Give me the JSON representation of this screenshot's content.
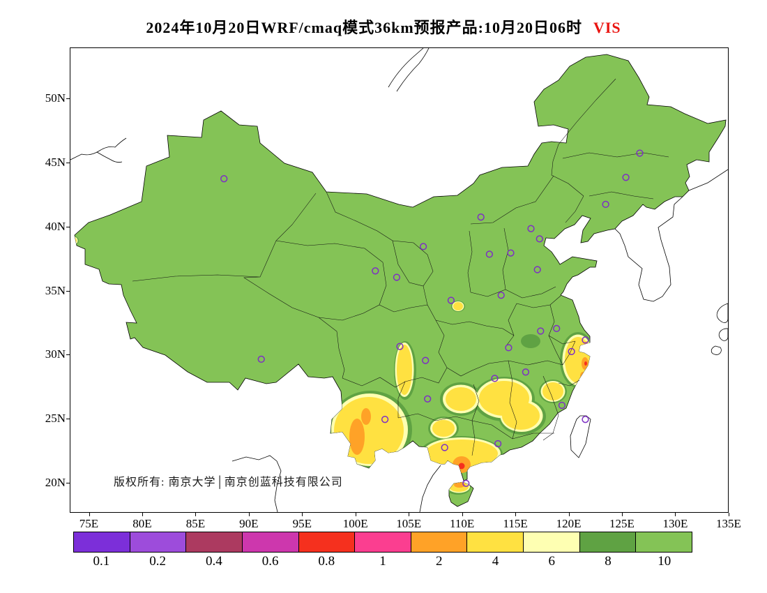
{
  "title": {
    "text": "2024年10月20日WRF/cmaq模式36km预报产品:10月20日06时",
    "highlight": "VIS",
    "highlight_color": "#EA1410"
  },
  "map": {
    "copyright": "版权所有: 南京大学│南京创蓝科技有限公司",
    "land_color": "#84C356",
    "marker_color": "#7D2FC4",
    "markers": [
      {
        "lon": 87.6,
        "lat": 43.8
      },
      {
        "lon": 126.6,
        "lat": 45.8
      },
      {
        "lon": 125.3,
        "lat": 43.9
      },
      {
        "lon": 123.4,
        "lat": 41.8
      },
      {
        "lon": 111.7,
        "lat": 40.8
      },
      {
        "lon": 116.4,
        "lat": 39.9
      },
      {
        "lon": 117.2,
        "lat": 39.1
      },
      {
        "lon": 114.5,
        "lat": 38.0
      },
      {
        "lon": 106.3,
        "lat": 38.5
      },
      {
        "lon": 112.5,
        "lat": 37.9
      },
      {
        "lon": 117.0,
        "lat": 36.7
      },
      {
        "lon": 101.8,
        "lat": 36.6
      },
      {
        "lon": 103.8,
        "lat": 36.1
      },
      {
        "lon": 113.6,
        "lat": 34.7
      },
      {
        "lon": 108.9,
        "lat": 34.3
      },
      {
        "lon": 118.8,
        "lat": 32.1
      },
      {
        "lon": 117.3,
        "lat": 31.9
      },
      {
        "lon": 121.5,
        "lat": 31.2
      },
      {
        "lon": 120.2,
        "lat": 30.3
      },
      {
        "lon": 104.1,
        "lat": 30.7
      },
      {
        "lon": 106.5,
        "lat": 29.6
      },
      {
        "lon": 91.1,
        "lat": 29.7
      },
      {
        "lon": 114.3,
        "lat": 30.6
      },
      {
        "lon": 115.9,
        "lat": 28.7
      },
      {
        "lon": 113.0,
        "lat": 28.2
      },
      {
        "lon": 106.7,
        "lat": 26.6
      },
      {
        "lon": 102.7,
        "lat": 25.0
      },
      {
        "lon": 119.3,
        "lat": 26.1
      },
      {
        "lon": 121.5,
        "lat": 25.0
      },
      {
        "lon": 113.3,
        "lat": 23.1
      },
      {
        "lon": 108.3,
        "lat": 22.8
      },
      {
        "lon": 110.3,
        "lat": 20.0
      }
    ]
  },
  "axes": {
    "lat_labels": [
      "50N",
      "45N",
      "40N",
      "35N",
      "30N",
      "25N",
      "20N"
    ],
    "lon_labels": [
      "75E",
      "80E",
      "85E",
      "90E",
      "95E",
      "100E",
      "105E",
      "110E",
      "115E",
      "120E",
      "125E",
      "130E",
      "135E"
    ]
  },
  "colorbar": {
    "labels": [
      "0.1",
      "0.2",
      "0.4",
      "0.6",
      "0.8",
      "1",
      "2",
      "4",
      "6",
      "8",
      "10"
    ],
    "colors": [
      "#7C2FD9",
      "#9D4CDB",
      "#AC3A60",
      "#CD37AD",
      "#F5301E",
      "#FB3E90",
      "#FFA227",
      "#FFE141",
      "#FEFFB2",
      "#5FA243",
      "#84C356"
    ]
  }
}
